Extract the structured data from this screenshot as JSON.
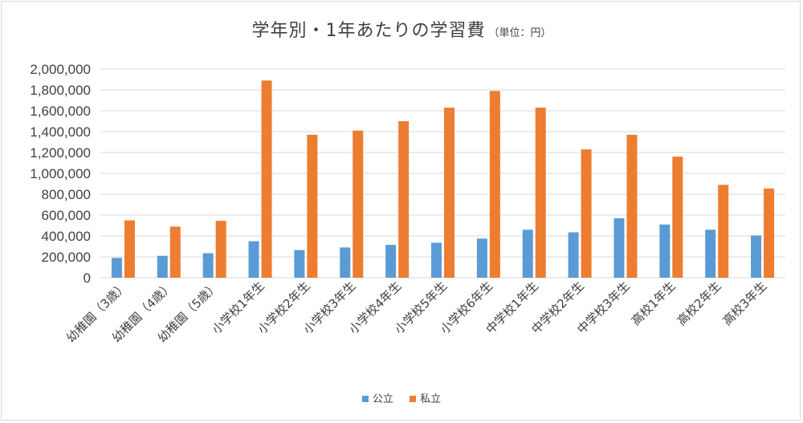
{
  "chart_data": {
    "type": "bar",
    "title": "学年別・1年あたりの学習費",
    "subtitle": "（単位：円）",
    "xlabel": "",
    "ylabel": "",
    "ylim": [
      0,
      2000000
    ],
    "y_ticks": [
      "0",
      "200,000",
      "400,000",
      "600,000",
      "800,000",
      "1,000,000",
      "1,200,000",
      "1,400,000",
      "1,600,000",
      "1,800,000",
      "2,000,000"
    ],
    "grid": true,
    "legend_position": "bottom",
    "categories": [
      "幼稚園（3歳）",
      "幼稚園（4歳）",
      "幼稚園（5歳）",
      "小学校1年生",
      "小学校2年生",
      "小学校3年生",
      "小学校4年生",
      "小学校5年生",
      "小学校6年生",
      "中学校1年生",
      "中学校2年生",
      "中学校3年生",
      "高校1年生",
      "高校2年生",
      "高校3年生"
    ],
    "series": [
      {
        "name": "公立",
        "color": "#5b9bd5",
        "values": [
          190000,
          210000,
          235000,
          350000,
          265000,
          290000,
          315000,
          335000,
          375000,
          460000,
          435000,
          570000,
          510000,
          460000,
          405000
        ]
      },
      {
        "name": "私立",
        "color": "#ed7d31",
        "values": [
          550000,
          490000,
          545000,
          1890000,
          1370000,
          1410000,
          1500000,
          1630000,
          1790000,
          1630000,
          1230000,
          1370000,
          1160000,
          890000,
          855000
        ]
      }
    ]
  }
}
